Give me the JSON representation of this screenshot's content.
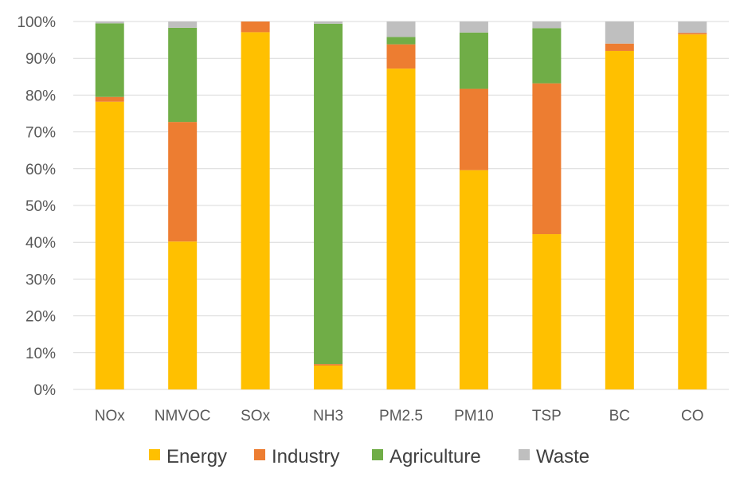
{
  "chart_data": {
    "type": "bar",
    "stacked": true,
    "percent": true,
    "title": "",
    "xlabel": "",
    "ylabel": "",
    "ylim": [
      0,
      100
    ],
    "y_ticks": [
      "0%",
      "10%",
      "20%",
      "30%",
      "40%",
      "50%",
      "60%",
      "70%",
      "80%",
      "90%",
      "100%"
    ],
    "grid": true,
    "legend_position": "bottom",
    "categories": [
      "NOx",
      "NMVOC",
      "SOx",
      "NH3",
      "PM2.5",
      "PM10",
      "TSP",
      "BC",
      "CO"
    ],
    "series": [
      {
        "name": "Energy",
        "color": "#FFC000",
        "values": [
          78.2,
          40.2,
          97.1,
          6.5,
          87.2,
          59.6,
          42.2,
          92.0,
          96.5
        ]
      },
      {
        "name": "Industry",
        "color": "#ED7D31",
        "values": [
          1.3,
          32.5,
          2.9,
          0.4,
          6.6,
          22.1,
          41.0,
          2.0,
          0.4
        ]
      },
      {
        "name": "Agriculture",
        "color": "#70AD47",
        "values": [
          20.0,
          25.6,
          0.0,
          92.5,
          2.0,
          15.3,
          15.0,
          0.0,
          0.0
        ]
      },
      {
        "name": "Waste",
        "color": "#BFBFBF",
        "values": [
          0.5,
          1.7,
          0.0,
          0.6,
          4.2,
          3.0,
          1.8,
          6.0,
          3.1
        ]
      }
    ]
  }
}
